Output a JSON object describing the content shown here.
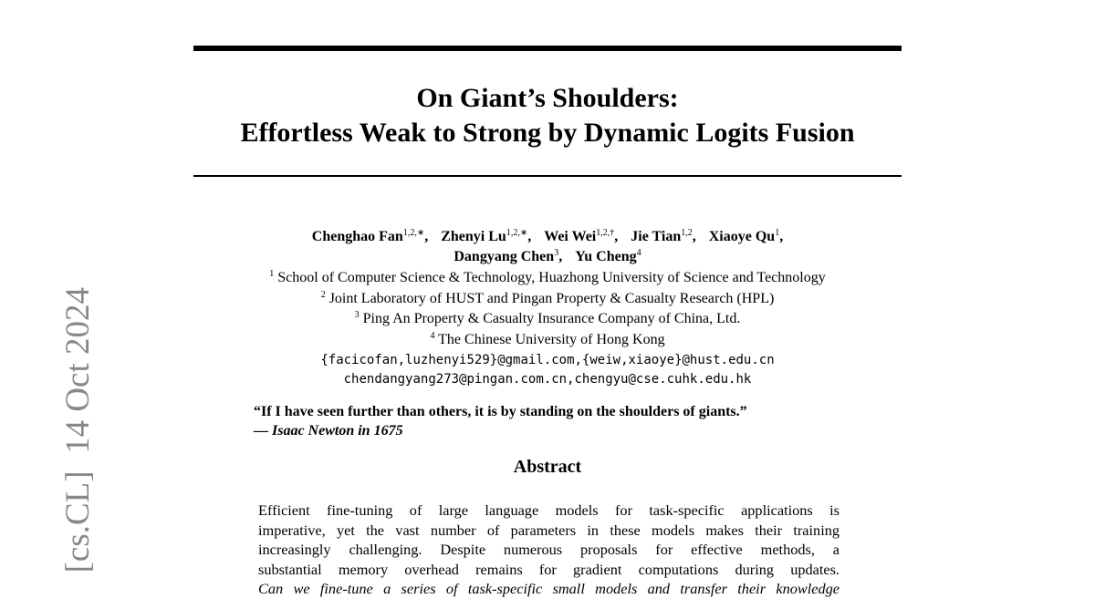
{
  "arxiv_stamp": "[cs.CL]  14 Oct 2024",
  "title": [
    "On Giant’s Shoulders:",
    "Effortless Weak to Strong by Dynamic Logits Fusion"
  ],
  "authors": [
    [
      {
        "name": "Chenghao Fan",
        "sup": "1,2,∗",
        "sep": ","
      },
      {
        "name": "Zhenyi Lu",
        "sup": "1,2,∗",
        "sep": ","
      },
      {
        "name": "Wei Wei",
        "sup": "1,2,†",
        "sep": ","
      },
      {
        "name": "Jie Tian",
        "sup": "1,2",
        "sep": ","
      },
      {
        "name": "Xiaoye Qu",
        "sup": "1",
        "sep": ","
      }
    ],
    [
      {
        "name": "Dangyang Chen",
        "sup": "3",
        "sep": ","
      },
      {
        "name": "Yu Cheng",
        "sup": "4",
        "sep": null
      }
    ]
  ],
  "affiliations": [
    {
      "num": "1",
      "text": "School of Computer Science & Technology, Huazhong University of Science and Technology"
    },
    {
      "num": "2",
      "text": "Joint Laboratory of HUST and Pingan Property & Casualty Research (HPL)"
    },
    {
      "num": "3",
      "text": "Ping An Property & Casualty Insurance Company of China, Ltd."
    },
    {
      "num": "4",
      "text": "The Chinese University of Hong Kong"
    }
  ],
  "emails": [
    "{facicofan,luzhenyi529}@gmail.com,{weiw,xiaoye}@hust.edu.cn",
    "chendangyang273@pingan.com.cn,chengyu@cse.cuhk.edu.hk"
  ],
  "quote": {
    "text": "“If I have seen further than others, it is by standing on the shoulders of giants.”",
    "attribution": "— Isaac Newton in 1675"
  },
  "abstract": {
    "heading": "Abstract",
    "lines": [
      "Efficient fine-tuning of large language models for task-specific applications is",
      "imperative, yet the vast number of parameters in these models makes their training",
      "increasingly challenging. Despite numerous proposals for effective methods, a",
      "substantial memory overhead remains for gradient computations during updates.",
      "Can we fine-tune a series of task-specific small models and transfer their knowledge"
    ]
  }
}
